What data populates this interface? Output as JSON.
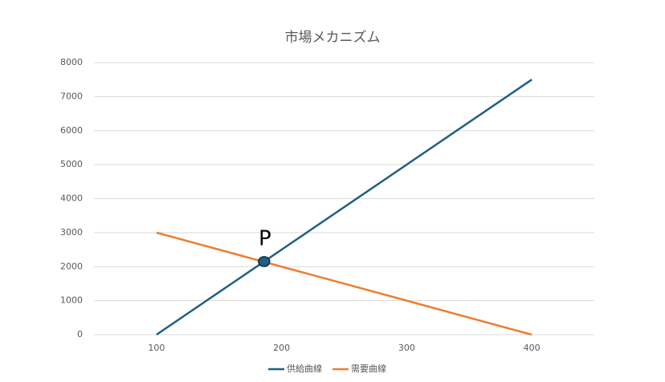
{
  "chart_data": {
    "type": "line",
    "title": "市場メカニズム",
    "x": [
      100,
      400
    ],
    "series": [
      {
        "name": "供給曲線",
        "color": "#1f5f82",
        "values": [
          0,
          7500
        ]
      },
      {
        "name": "需要曲線",
        "color": "#ed7d31",
        "values": [
          3000,
          0
        ]
      }
    ],
    "xlim": [
      50,
      450
    ],
    "xticks": [
      100,
      200,
      300,
      400
    ],
    "ylim": [
      0,
      8000
    ],
    "yticks": [
      0,
      1000,
      2000,
      3000,
      4000,
      5000,
      6000,
      7000,
      8000
    ],
    "grid": true,
    "legend": "bottom",
    "annotations": [
      {
        "text": "P",
        "x": 186,
        "y": 2150,
        "color": "#1f5f82"
      }
    ]
  }
}
